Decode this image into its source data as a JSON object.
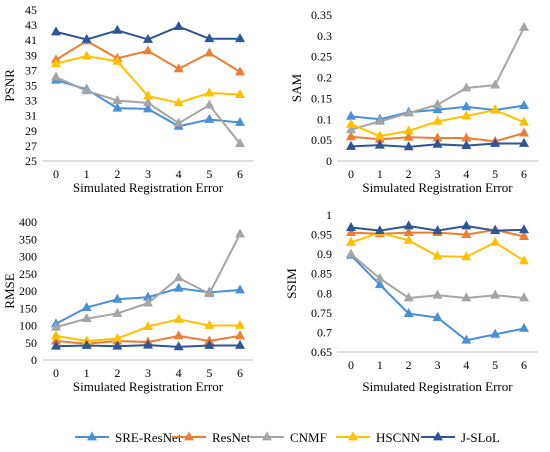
{
  "chart_data": [
    {
      "type": "line",
      "xlabel": "Simulated Registration Error",
      "ylabel": "PSNR",
      "x": [
        0,
        1,
        2,
        3,
        4,
        5,
        6
      ],
      "ylim": [
        25,
        45
      ],
      "yticks": [
        "25",
        "27",
        "29",
        "31",
        "33",
        "35",
        "37",
        "39",
        "41",
        "43",
        "45"
      ],
      "series": [
        {
          "name": "SRE-ResNet",
          "values": [
            35.7,
            34.5,
            32.0,
            31.9,
            29.6,
            30.5,
            30.1
          ]
        },
        {
          "name": "ResNet",
          "values": [
            38.4,
            40.9,
            38.6,
            39.6,
            37.2,
            39.3,
            36.8
          ]
        },
        {
          "name": "CNMF",
          "values": [
            36.1,
            34.3,
            33.0,
            32.7,
            30.0,
            32.4,
            27.3
          ]
        },
        {
          "name": "HSCNN",
          "values": [
            37.9,
            38.9,
            38.2,
            33.6,
            32.7,
            34.0,
            33.8
          ]
        },
        {
          "name": "J-SLoL",
          "values": [
            42.1,
            41.1,
            42.3,
            41.1,
            42.8,
            41.2,
            41.2
          ]
        }
      ]
    },
    {
      "type": "line",
      "xlabel": "",
      "ylabel": "SAM",
      "x": [
        0,
        1,
        2,
        3,
        4,
        5,
        6
      ],
      "ylim": [
        0,
        0.35
      ],
      "yticks": [
        "0",
        "0.05",
        "0.1",
        "0.15",
        "0.2",
        "0.25",
        "0.3",
        "0.35"
      ],
      "series": [
        {
          "name": "SRE-ResNet",
          "values": [
            0.107,
            0.1,
            0.117,
            0.123,
            0.13,
            0.122,
            0.133
          ]
        },
        {
          "name": "ResNet",
          "values": [
            0.058,
            0.052,
            0.057,
            0.055,
            0.055,
            0.047,
            0.067
          ]
        },
        {
          "name": "CNMF",
          "values": [
            0.075,
            0.095,
            0.115,
            0.135,
            0.175,
            0.182,
            0.32
          ]
        },
        {
          "name": "HSCNN",
          "values": [
            0.088,
            0.06,
            0.072,
            0.095,
            0.108,
            0.122,
            0.093
          ]
        },
        {
          "name": "J-SLoL",
          "values": [
            0.035,
            0.038,
            0.034,
            0.04,
            0.037,
            0.042,
            0.042
          ]
        }
      ]
    },
    {
      "type": "line",
      "xlabel": "Simulated Registration Error",
      "ylabel": "RMSE",
      "x": [
        0,
        1,
        2,
        3,
        4,
        5,
        6
      ],
      "ylim": [
        0,
        400
      ],
      "yticks": [
        "0",
        "50",
        "100",
        "150",
        "200",
        "250",
        "300",
        "350",
        "400"
      ],
      "series": [
        {
          "name": "SRE-ResNet",
          "values": [
            105,
            152,
            176,
            182,
            208,
            196,
            203
          ]
        },
        {
          "name": "ResNet",
          "values": [
            55,
            47,
            55,
            52,
            70,
            55,
            70
          ]
        },
        {
          "name": "CNMF",
          "values": [
            95,
            120,
            135,
            165,
            238,
            192,
            365
          ]
        },
        {
          "name": "HSCNN",
          "values": [
            70,
            55,
            62,
            97,
            118,
            100,
            100
          ]
        },
        {
          "name": "J-SLoL",
          "values": [
            40,
            42,
            40,
            43,
            38,
            42,
            42
          ]
        }
      ]
    },
    {
      "type": "line",
      "xlabel": "Simulated Registration Error",
      "ylabel": "SSIM",
      "x": [
        0,
        1,
        2,
        3,
        4,
        5,
        6
      ],
      "ylim": [
        0.65,
        1
      ],
      "yticks": [
        "0.65",
        "0.7",
        "0.75",
        "0.8",
        "0.85",
        "0.9",
        "0.95",
        "1"
      ],
      "series": [
        {
          "name": "SRE-ResNet",
          "values": [
            0.897,
            0.822,
            0.748,
            0.738,
            0.68,
            0.695,
            0.71
          ]
        },
        {
          "name": "ResNet",
          "values": [
            0.955,
            0.952,
            0.955,
            0.955,
            0.95,
            0.962,
            0.945
          ]
        },
        {
          "name": "CNMF",
          "values": [
            0.9,
            0.838,
            0.788,
            0.795,
            0.788,
            0.795,
            0.788
          ]
        },
        {
          "name": "HSCNN",
          "values": [
            0.93,
            0.955,
            0.935,
            0.895,
            0.893,
            0.93,
            0.883
          ]
        },
        {
          "name": "J-SLoL",
          "values": [
            0.968,
            0.96,
            0.972,
            0.96,
            0.972,
            0.96,
            0.962
          ]
        }
      ]
    }
  ],
  "legend": [
    {
      "name": "SRE-ResNet",
      "color": "#4a90d9"
    },
    {
      "name": "ResNet",
      "color": "#ed7d31"
    },
    {
      "name": "CNMF",
      "color": "#a5a5a5"
    },
    {
      "name": "HSCNN",
      "color": "#ffc000"
    },
    {
      "name": "J-SLoL",
      "color": "#2f5597"
    }
  ],
  "colors": {
    "SRE-ResNet": "#4a90d9",
    "ResNet": "#ed7d31",
    "CNMF": "#a5a5a5",
    "HSCNN": "#ffc000",
    "J-SLoL": "#2f5597",
    "axis": "#bfbfbf"
  }
}
